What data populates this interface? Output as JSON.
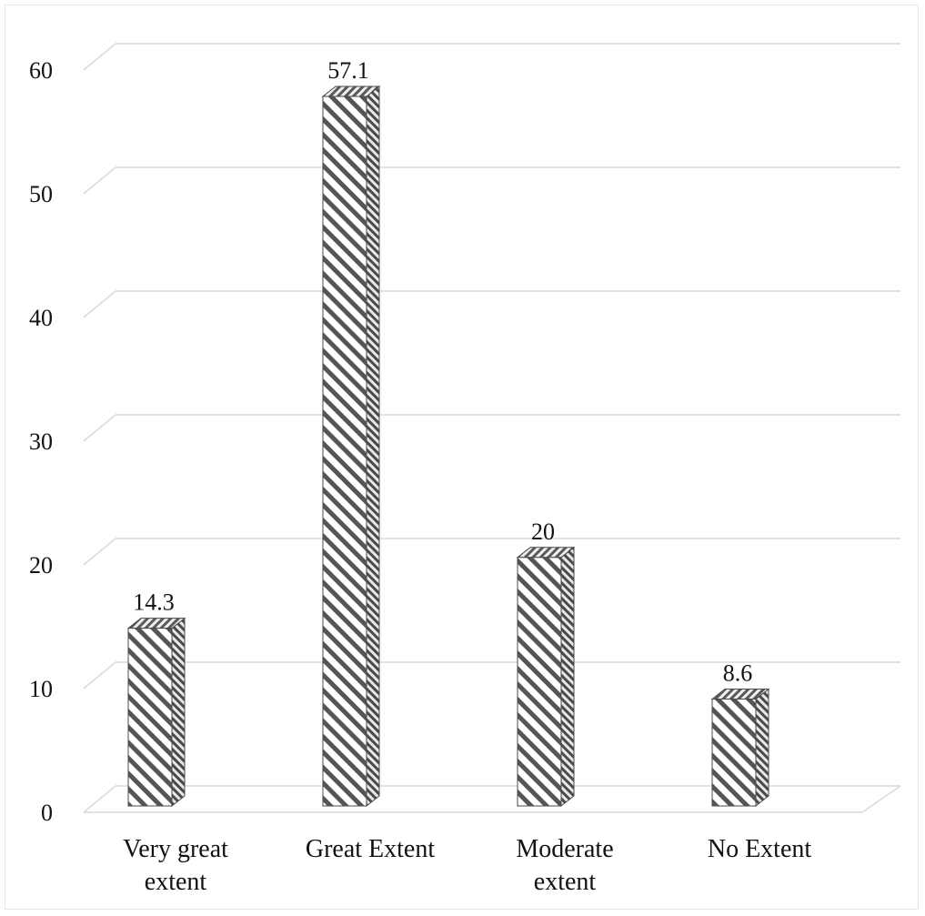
{
  "chart_data": {
    "type": "bar",
    "categories": [
      [
        "Very great",
        "extent"
      ],
      [
        "Great Extent"
      ],
      [
        "Moderate",
        "extent"
      ],
      [
        "No Extent"
      ]
    ],
    "values": [
      14.3,
      57.1,
      20,
      8.6
    ],
    "data_labels": [
      "14.3",
      "57.1",
      "20",
      "8.6"
    ],
    "title": "",
    "xlabel": "",
    "ylabel": "",
    "ylim": [
      0,
      60
    ],
    "yticks": [
      0,
      10,
      20,
      30,
      40,
      50,
      60
    ],
    "grid": true,
    "style": "3d-column",
    "bar_fill": "diagonal-hatch",
    "colors": {
      "bar_stroke": "#4a4a4a",
      "hatch": "#555555",
      "grid": "#d9d9d9",
      "text": "#111111"
    }
  }
}
